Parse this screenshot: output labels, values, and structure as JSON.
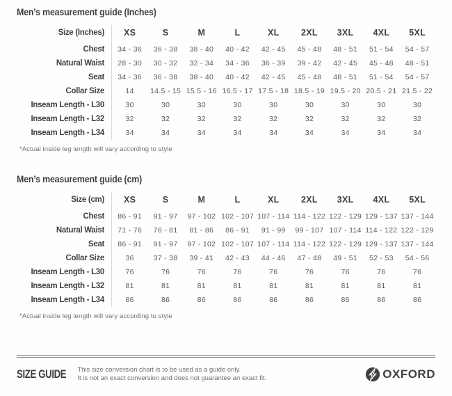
{
  "colors": {
    "heading_text": "#414042",
    "data_text": "#58595b",
    "muted_text": "#6d6e71",
    "divider_line": "#d9dadb",
    "footer_rule": "#8e9092",
    "brand_dark": "#414042"
  },
  "tables": [
    {
      "title": "Men’s measurement guide (Inches)",
      "header": [
        "Size (Inches)",
        "XS",
        "S",
        "M",
        "L",
        "XL",
        "2XL",
        "3XL",
        "4XL",
        "5XL"
      ],
      "rows": [
        {
          "label": "Chest",
          "values": [
            "34 - 36",
            "36 - 38",
            "38 - 40",
            "40 - 42",
            "42 - 45",
            "45 - 48",
            "48 - 51",
            "51 - 54",
            "54 - 57"
          ]
        },
        {
          "label": "Natural Waist",
          "values": [
            "28 - 30",
            "30 - 32",
            "32 - 34",
            "34 - 36",
            "36 - 39",
            "39 - 42",
            "42 - 45",
            "45 - 48",
            "48 - 51"
          ]
        },
        {
          "label": "Seat",
          "values": [
            "34 - 36",
            "36 - 38",
            "38 - 40",
            "40 - 42",
            "42 - 45",
            "45 - 48",
            "48 - 51",
            "51 - 54",
            "54 - 57"
          ]
        },
        {
          "label": "Collar Size",
          "values": [
            "14",
            "14.5 - 15",
            "15.5 - 16",
            "16.5 - 17",
            "17.5 - 18",
            "18.5 - 19",
            "19.5 - 20",
            "20.5 - 21",
            "21.5 - 22"
          ]
        },
        {
          "label": "Inseam Length - L30",
          "values": [
            "30",
            "30",
            "30",
            "30",
            "30",
            "30",
            "30",
            "30",
            "30"
          ]
        },
        {
          "label": "Inseam Length - L32",
          "values": [
            "32",
            "32",
            "32",
            "32",
            "32",
            "32",
            "32",
            "32",
            "32"
          ]
        },
        {
          "label": "Inseam Length - L34",
          "values": [
            "34",
            "34",
            "34",
            "34",
            "34",
            "34",
            "34",
            "34",
            "34"
          ]
        }
      ],
      "footnote": "*Actual inside leg length will vary according to style"
    },
    {
      "title": "Men’s measurement guide (cm)",
      "header": [
        "Size (cm)",
        "XS",
        "S",
        "M",
        "L",
        "XL",
        "2XL",
        "3XL",
        "4XL",
        "5XL"
      ],
      "rows": [
        {
          "label": "Chest",
          "values": [
            "86 - 91",
            "91 - 97",
            "97 - 102",
            "102 - 107",
            "107 - 114",
            "114 - 122",
            "122 - 129",
            "129 - 137",
            "137 - 144"
          ]
        },
        {
          "label": "Natural Waist",
          "values": [
            "71 - 76",
            "76 - 81",
            "81 - 86",
            "86 - 91",
            "91 - 99",
            "99 - 107",
            "107 - 114",
            "114 - 122",
            "122 - 129"
          ]
        },
        {
          "label": "Seat",
          "values": [
            "86 - 91",
            "91 - 97",
            "97 - 102",
            "102 - 107",
            "107 - 114",
            "114 - 122",
            "122 - 129",
            "129 - 137",
            "137 - 144"
          ]
        },
        {
          "label": "Collar Size",
          "values": [
            "36",
            "37 - 38",
            "39 - 41",
            "42 - 43",
            "44 - 46",
            "47 - 48",
            "49 - 51",
            "52 - 53",
            "54 - 56"
          ]
        },
        {
          "label": "Inseam Length - L30",
          "values": [
            "76",
            "76",
            "76",
            "76",
            "76",
            "76",
            "76",
            "76",
            "76"
          ]
        },
        {
          "label": "Inseam Length - L32",
          "values": [
            "81",
            "81",
            "81",
            "81",
            "81",
            "81",
            "81",
            "81",
            "81"
          ]
        },
        {
          "label": "Inseam Length - L34",
          "values": [
            "86",
            "86",
            "86",
            "86",
            "86",
            "86",
            "86",
            "86",
            "86"
          ]
        }
      ],
      "footnote": "*Actual inside leg length will vary according to style"
    }
  ],
  "footer": {
    "size_guide_label": "SIZE GUIDE",
    "disclaimer_line1": "This size conversion chart is to be used as a guide only.",
    "disclaimer_line2": "It is not an exact conversion and does not guarantee an exact fit.",
    "brand": "OXFORD"
  }
}
